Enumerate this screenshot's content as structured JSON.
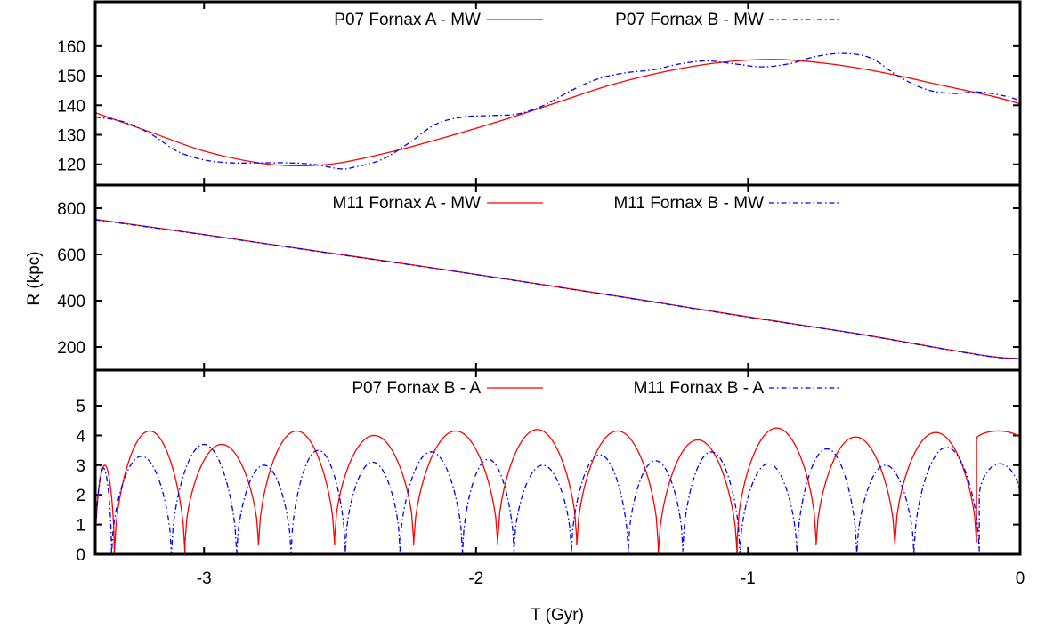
{
  "chart_data": {
    "type": "line",
    "xlabel": "T (Gyr)",
    "ylabel": "R (kpc)",
    "xlim": [
      -3.4,
      0
    ],
    "x_ticks": [
      -3,
      -2,
      -1,
      0
    ],
    "x_tick_labels": [
      "-3",
      "-2",
      "-1",
      "0"
    ],
    "grid": false,
    "legend_placement": "top",
    "panels": [
      {
        "id": "top",
        "ylim": [
          113,
          175
        ],
        "y_ticks": [
          120,
          130,
          140,
          150,
          160
        ],
        "y_tick_labels": [
          "120",
          "130",
          "140",
          "150",
          "160"
        ],
        "series": [
          {
            "name": "P07 Fornax A - MW",
            "color": "#ff0000",
            "style": "solid",
            "x": [
              -3.4,
              -3.2,
              -3.0,
              -2.8,
              -2.65,
              -2.5,
              -2.3,
              -2.1,
              -1.9,
              -1.7,
              -1.5,
              -1.3,
              -1.1,
              -0.9,
              -0.7,
              -0.5,
              -0.3,
              -0.1,
              0.0
            ],
            "y": [
              137.5,
              131.0,
              124.5,
              120.5,
              119.5,
              120.5,
              124.5,
              129.5,
              135.0,
              141.0,
              147.0,
              151.5,
              154.5,
              155.5,
              154.0,
              151.0,
              147.0,
              143.0,
              140.5
            ]
          },
          {
            "name": "P07 Fornax B - MW",
            "color": "#0000ff",
            "style": "dash-dot",
            "x": [
              -3.4,
              -3.3,
              -3.2,
              -3.1,
              -3.0,
              -2.9,
              -2.8,
              -2.7,
              -2.6,
              -2.5,
              -2.45,
              -2.35,
              -2.25,
              -2.15,
              -2.05,
              -1.95,
              -1.85,
              -1.75,
              -1.65,
              -1.55,
              -1.45,
              -1.35,
              -1.25,
              -1.15,
              -1.05,
              -0.95,
              -0.85,
              -0.75,
              -0.65,
              -0.55,
              -0.45,
              -0.35,
              -0.25,
              -0.15,
              -0.05,
              0.0
            ],
            "y": [
              136.0,
              134.5,
              130.5,
              124.5,
              121.5,
              120.5,
              120.5,
              120.5,
              120.0,
              118.5,
              119.0,
              121.5,
              127.0,
              133.5,
              136.0,
              136.5,
              137.0,
              140.0,
              145.0,
              149.0,
              151.0,
              152.0,
              154.0,
              155.0,
              154.0,
              153.0,
              154.0,
              156.5,
              157.5,
              156.0,
              150.0,
              145.5,
              144.0,
              144.5,
              143.0,
              141.5
            ]
          }
        ]
      },
      {
        "id": "middle",
        "ylim": [
          100,
          900
        ],
        "y_ticks": [
          200,
          400,
          600,
          800
        ],
        "y_tick_labels": [
          "200",
          "400",
          "600",
          "800"
        ],
        "series": [
          {
            "name": "M11 Fornax A - MW",
            "color": "#ff0000",
            "style": "solid",
            "x": [
              -3.4,
              -3.0,
              -2.6,
              -2.2,
              -1.8,
              -1.4,
              -1.0,
              -0.6,
              -0.3,
              -0.1,
              0.0
            ],
            "y": [
              752,
              686,
              617,
              549,
              478,
              405,
              330,
              258,
              196,
              158,
              150
            ]
          },
          {
            "name": "M11 Fornax B - MW",
            "color": "#0000ff",
            "style": "dash-dot",
            "x": [
              -3.4,
              -3.0,
              -2.6,
              -2.2,
              -1.8,
              -1.4,
              -1.0,
              -0.6,
              -0.3,
              -0.1,
              0.0
            ],
            "y": [
              750,
              685,
              616,
              548,
              477,
              404,
              329,
              257,
              195,
              157,
              149
            ]
          }
        ]
      },
      {
        "id": "bottom",
        "ylim": [
          0,
          6.2
        ],
        "y_ticks": [
          0,
          1,
          2,
          3,
          4,
          5
        ],
        "y_tick_labels": [
          "0",
          "1",
          "2",
          "3",
          "4",
          "5"
        ],
        "series": [
          {
            "name": "P07 Fornax B - A",
            "color": "#ff0000",
            "style": "solid",
            "arches": [
              [
                -3.4,
                -3.33,
                3.0,
                0.1
              ],
              [
                -3.33,
                -3.07,
                4.15,
                0.0
              ],
              [
                -3.07,
                -2.8,
                3.7,
                0.4
              ],
              [
                -2.8,
                -2.52,
                4.15,
                0.3
              ],
              [
                -2.52,
                -2.23,
                4.0,
                0.55
              ],
              [
                -2.23,
                -1.92,
                4.15,
                0.3
              ],
              [
                -1.92,
                -1.63,
                4.2,
                0.5
              ],
              [
                -1.63,
                -1.33,
                4.15,
                0.3
              ],
              [
                -1.33,
                -1.04,
                3.85,
                0.0
              ],
              [
                -1.04,
                -0.75,
                4.25,
                0.5
              ],
              [
                -0.75,
                -0.46,
                3.95,
                0.3
              ],
              [
                -0.46,
                -0.16,
                4.1,
                0.4
              ],
              [
                -0.16,
                0.0,
                4.15,
                3.9
              ]
            ]
          },
          {
            "name": "M11 Fornax B - A",
            "color": "#0000ff",
            "style": "dash-dot",
            "arches": [
              [
                -3.4,
                -3.34,
                2.9,
                0.0
              ],
              [
                -3.34,
                -3.12,
                3.3,
                0.0
              ],
              [
                -3.12,
                -2.88,
                3.7,
                0.0
              ],
              [
                -2.88,
                -2.68,
                3.0,
                0.0
              ],
              [
                -2.68,
                -2.48,
                3.5,
                0.0
              ],
              [
                -2.48,
                -2.28,
                3.1,
                0.2
              ],
              [
                -2.28,
                -2.05,
                3.45,
                0.1
              ],
              [
                -2.05,
                -1.86,
                3.2,
                0.0
              ],
              [
                -1.86,
                -1.65,
                3.0,
                0.2
              ],
              [
                -1.65,
                -1.44,
                3.35,
                0.0
              ],
              [
                -1.44,
                -1.24,
                3.15,
                0.2
              ],
              [
                -1.24,
                -1.03,
                3.45,
                0.1
              ],
              [
                -1.03,
                -0.82,
                3.05,
                0.0
              ],
              [
                -0.82,
                -0.6,
                3.55,
                0.0
              ],
              [
                -0.6,
                -0.39,
                3.0,
                0.0
              ],
              [
                -0.39,
                -0.15,
                3.6,
                0.1
              ],
              [
                -0.15,
                0.0,
                3.05,
                2.0
              ]
            ]
          }
        ]
      }
    ]
  }
}
